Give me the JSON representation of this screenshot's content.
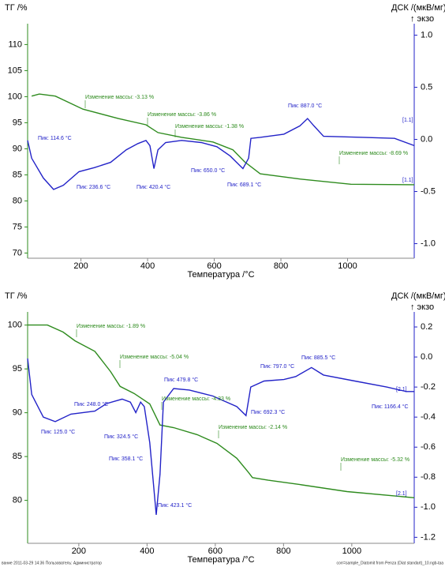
{
  "chart_data": [
    {
      "type": "line",
      "ylabel": "ТГ /%",
      "y2label": "ДСК /(мкВ/мг)",
      "exo_label": "↑ экзо",
      "xlabel": "Температура /°C",
      "xlim": [
        40,
        1200
      ],
      "xticks": [
        200,
        400,
        600,
        800,
        1000
      ],
      "ylim": [
        69,
        114
      ],
      "yticks": [
        70,
        75,
        80,
        85,
        90,
        95,
        100,
        105,
        110
      ],
      "y2lim": [
        -1.14,
        1.11
      ],
      "y2ticks": [
        {
          "value": -1.0,
          "label": "-1.0"
        },
        -0.5,
        {
          "value": 0.0,
          "label": "0.0"
        },
        0.5,
        {
          "value": 1.0,
          "label": "1.0"
        }
      ],
      "series": [
        {
          "color": "#2e8b1e",
          "axis": "y",
          "x": [
            52,
            75,
            123,
            206,
            312,
            395,
            431,
            502,
            596,
            656,
            691,
            738,
            857,
            1010,
            1200
          ],
          "values": [
            100.1,
            100.5,
            100.1,
            97.6,
            95.8,
            94.6,
            93.1,
            92.2,
            91.3,
            89.8,
            87.5,
            85.2,
            84.2,
            83.2,
            83.1
          ]
        },
        {
          "color": "#2323c8",
          "axis": "y2",
          "x": [
            40,
            52,
            87,
            118,
            147,
            194,
            241,
            289,
            336,
            371,
            395,
            407,
            419,
            431,
            454,
            502,
            561,
            608,
            648,
            667,
            686,
            703,
            710,
            738,
            809,
            857,
            880,
            899,
            928,
            1046,
            1141,
            1200
          ],
          "values": [
            -0.01,
            -0.18,
            -0.37,
            -0.48,
            -0.44,
            -0.31,
            -0.27,
            -0.22,
            -0.1,
            -0.04,
            -0.01,
            -0.06,
            -0.28,
            -0.1,
            -0.03,
            -0.01,
            -0.03,
            -0.07,
            -0.16,
            -0.22,
            -0.28,
            -0.18,
            0.01,
            0.02,
            0.05,
            0.13,
            0.2,
            0.13,
            0.03,
            0.02,
            0.01,
            -0.06
          ]
        }
      ],
      "mass_labels": [
        "Изменение массы: -3.13 %",
        "Изменение массы: -3.86 %",
        "Изменение массы: -1.38 %",
        "Изменение массы: -8.69 %"
      ],
      "peak_labels": [
        "Пик: 114.6 °C",
        "Пик: 236.6 °C",
        "Пик: 420.4 °C",
        "Пик: 650.0 °C",
        "Пик: 689.1 °C",
        "Пик: 887.0 °C",
        "[1.1]",
        "[1.1]"
      ]
    },
    {
      "type": "line",
      "ylabel": "ТГ /%",
      "y2label": "ДСК /(мкВ/мг)",
      "exo_label": "↑ экзо",
      "xlabel": "Температура /°C",
      "xlim": [
        50,
        1183
      ],
      "xticks": [
        200,
        400,
        600,
        800,
        1000
      ],
      "ylim": [
        75.1,
        101.5
      ],
      "yticks": [
        80,
        85,
        90,
        95,
        100
      ],
      "y2lim": [
        -1.24,
        0.3
      ],
      "y2ticks": [
        -1.2,
        {
          "value": -1.0,
          "label": "-1.0"
        },
        -0.8,
        -0.6,
        -0.4,
        -0.2,
        {
          "value": 0.0,
          "label": "0.0"
        },
        0.2
      ],
      "series": [
        {
          "color": "#2e8b1e",
          "axis": "y",
          "x": [
            50,
            108,
            154,
            189,
            247,
            293,
            321,
            362,
            408,
            438,
            478,
            547,
            605,
            663,
            697,
            709,
            755,
            848,
            986,
            1183
          ],
          "values": [
            100.0,
            100.0,
            99.2,
            98.2,
            97.0,
            94.7,
            93.0,
            92.2,
            91.0,
            88.6,
            88.3,
            87.5,
            86.5,
            84.8,
            83.2,
            82.6,
            82.3,
            81.8,
            81.0,
            80.3
          ]
        },
        {
          "color": "#2323c8",
          "axis": "y2",
          "x": [
            50,
            62,
            96,
            131,
            177,
            247,
            281,
            327,
            351,
            367,
            381,
            392,
            408,
            427,
            438,
            448,
            478,
            524,
            593,
            663,
            690,
            704,
            743,
            801,
            836,
            882,
            917,
            1009,
            1102,
            1160,
            1183
          ],
          "values": [
            -0.01,
            -0.25,
            -0.4,
            -0.43,
            -0.38,
            -0.36,
            -0.31,
            -0.28,
            -0.3,
            -0.37,
            -0.3,
            -0.33,
            -0.57,
            -1.05,
            -0.78,
            -0.3,
            -0.21,
            -0.22,
            -0.26,
            -0.33,
            -0.39,
            -0.2,
            -0.16,
            -0.15,
            -0.13,
            -0.07,
            -0.12,
            -0.16,
            -0.2,
            -0.23,
            -0.23
          ]
        }
      ],
      "mass_labels": [
        "Изменение массы: -1.89 %",
        "Изменение массы: -5.04 %",
        "Изменение массы: -4.33 %",
        "Изменение массы: -2.14 %",
        "Изменение массы: -5.32 %"
      ],
      "peak_labels": [
        "Пик: 125.0 °C",
        "Пик: 248.0 °C",
        "Пик: 324.5 °C",
        "Пик: 358.1 °C",
        "Пик: 423.1 °C",
        "Пик: 479.8 °C",
        "Пик: 692.3 °C",
        "Пик: 797.0 °C",
        "Пик: 885.5 °C",
        "Пик: 1166.4 °C",
        "[2.1]",
        "[2.1]"
      ]
    }
  ],
  "footer": {
    "left": "вание  2011-03-29 14:36   Пользователь: Администратор",
    "right": "corr=sample_Diatomit from Penza (Diat standart)_10.ngb-taa"
  }
}
